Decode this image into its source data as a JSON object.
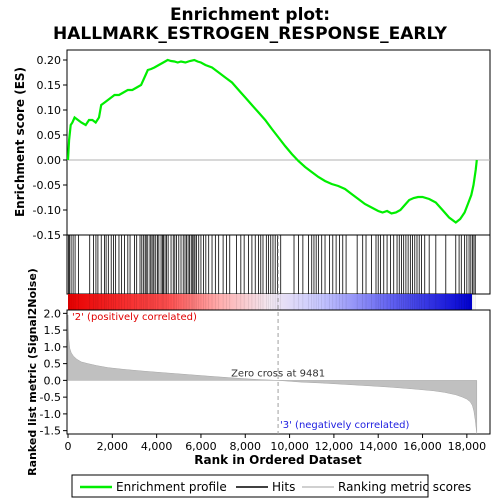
{
  "chart_data": {
    "type": "line",
    "title_line1": "Enrichment plot:",
    "title_line2": "HALLMARK_ESTROGEN_RESPONSE_EARLY",
    "es_panel": {
      "ylabel": "Enrichment score (ES)",
      "ylim": [
        -0.15,
        0.22
      ],
      "yticks": [
        "0.20",
        "0.15",
        "0.10",
        "0.05",
        "0.00",
        "-0.05",
        "-0.10",
        "-0.15"
      ],
      "ytick_values": [
        0.2,
        0.15,
        0.1,
        0.05,
        0.0,
        -0.05,
        -0.1,
        -0.15
      ],
      "series": [
        {
          "name": "Enrichment profile",
          "color": "#00ee00",
          "x": [
            0,
            50,
            120,
            200,
            300,
            450,
            600,
            800,
            950,
            1100,
            1250,
            1400,
            1500,
            1650,
            1800,
            1950,
            2100,
            2300,
            2500,
            2700,
            2900,
            3100,
            3300,
            3500,
            3600,
            3750,
            3900,
            4100,
            4300,
            4500,
            4650,
            4800,
            4950,
            5100,
            5300,
            5500,
            5700,
            5850,
            6000,
            6200,
            6500,
            6800,
            7100,
            7400,
            7600,
            7800,
            8000,
            8300,
            8600,
            8900,
            9200,
            9500,
            9800,
            10100,
            10400,
            10700,
            11000,
            11300,
            11600,
            11900,
            12200,
            12500,
            12800,
            13100,
            13400,
            13700,
            14000,
            14200,
            14400,
            14600,
            14800,
            15000,
            15200,
            15400,
            15600,
            15800,
            16000,
            16300,
            16600,
            16900,
            17200,
            17500,
            17700,
            17900,
            18050,
            18200,
            18300,
            18400,
            18450
          ],
          "y": [
            0.0,
            0.04,
            0.07,
            0.075,
            0.085,
            0.08,
            0.075,
            0.07,
            0.08,
            0.08,
            0.075,
            0.085,
            0.11,
            0.115,
            0.12,
            0.125,
            0.13,
            0.13,
            0.135,
            0.14,
            0.14,
            0.145,
            0.15,
            0.17,
            0.18,
            0.182,
            0.185,
            0.19,
            0.195,
            0.2,
            0.198,
            0.197,
            0.195,
            0.197,
            0.195,
            0.198,
            0.2,
            0.197,
            0.195,
            0.19,
            0.185,
            0.175,
            0.165,
            0.155,
            0.145,
            0.135,
            0.125,
            0.11,
            0.095,
            0.08,
            0.062,
            0.045,
            0.028,
            0.012,
            -0.002,
            -0.014,
            -0.024,
            -0.034,
            -0.042,
            -0.048,
            -0.052,
            -0.058,
            -0.068,
            -0.078,
            -0.088,
            -0.095,
            -0.102,
            -0.105,
            -0.102,
            -0.107,
            -0.105,
            -0.1,
            -0.09,
            -0.08,
            -0.076,
            -0.074,
            -0.074,
            -0.078,
            -0.085,
            -0.1,
            -0.115,
            -0.125,
            -0.118,
            -0.105,
            -0.088,
            -0.07,
            -0.05,
            -0.02,
            0.0
          ]
        }
      ]
    },
    "hits": {
      "name": "Hits",
      "positions": [
        25,
        70,
        140,
        230,
        320,
        470,
        980,
        1150,
        1260,
        1350,
        1500,
        1650,
        1720,
        1820,
        1950,
        2050,
        2150,
        2300,
        2420,
        2550,
        2700,
        2800,
        3000,
        3100,
        3250,
        3330,
        3400,
        3480,
        3530,
        3600,
        3700,
        3750,
        3830,
        3880,
        3960,
        4040,
        4100,
        4200,
        4260,
        4310,
        4380,
        4450,
        4520,
        4650,
        4750,
        4820,
        4900,
        5000,
        5100,
        5200,
        5280,
        5350,
        5420,
        5480,
        5560,
        5610,
        5680,
        5730,
        5800,
        5900,
        6000,
        6120,
        6220,
        6350,
        6500,
        6650,
        6800,
        7000,
        7150,
        7300,
        7600,
        7800,
        7950,
        8150,
        8300,
        8450,
        8600,
        8700,
        8800,
        8950,
        9050,
        9150,
        9250,
        9350,
        9450,
        9600,
        10200,
        10400,
        10600,
        10850,
        11000,
        11100,
        11200,
        11300,
        11450,
        11600,
        11800,
        11950,
        12100,
        12250,
        12400,
        12550,
        13050,
        13300,
        13450,
        13700,
        13900,
        14000,
        14100,
        14250,
        14400,
        14550,
        14700,
        14850,
        14950,
        15050,
        15150,
        15250,
        15350,
        15450,
        15550,
        15650,
        15750,
        15850,
        15950,
        16100,
        16300,
        16600,
        17050,
        17500,
        17650,
        17750,
        17900,
        18000,
        18100,
        18180,
        18250,
        18320,
        18380
      ]
    },
    "rank_panel": {
      "ylabel": "Ranked list metric (Signal2Noise)",
      "ylim": [
        -1.6,
        2.1
      ],
      "yticks": [
        "2.0",
        "1.5",
        "1.0",
        "0.5",
        "0.0",
        "-0.5",
        "-1.0",
        "-1.5"
      ],
      "ytick_values": [
        2.0,
        1.5,
        1.0,
        0.5,
        0.0,
        -0.5,
        -1.0,
        -1.5
      ],
      "series_name": "Ranking metric scores",
      "color": "#c0c0c0",
      "x": [
        0,
        30,
        80,
        150,
        250,
        400,
        600,
        900,
        1300,
        1800,
        2500,
        3500,
        4500,
        5500,
        6500,
        7500,
        8500,
        9481,
        10500,
        11500,
        12500,
        13500,
        14500,
        15500,
        16500,
        17000,
        17500,
        17800,
        18000,
        18150,
        18250,
        18320,
        18380,
        18450
      ],
      "y": [
        1.95,
        1.25,
        0.95,
        0.82,
        0.72,
        0.63,
        0.55,
        0.5,
        0.44,
        0.38,
        0.33,
        0.27,
        0.22,
        0.17,
        0.12,
        0.07,
        0.03,
        0.0,
        -0.05,
        -0.08,
        -0.12,
        -0.16,
        -0.2,
        -0.25,
        -0.31,
        -0.36,
        -0.43,
        -0.5,
        -0.56,
        -0.64,
        -0.75,
        -0.92,
        -1.2,
        -1.6
      ]
    },
    "zero_cross": {
      "label": "Zero cross at 9481",
      "value": 9481
    },
    "pos_label": "'2' (positively correlated)",
    "neg_label": "'3' (negatively correlated)",
    "xlabel": "Rank in Ordered Dataset",
    "xlim": [
      0,
      19000
    ],
    "xticks": [
      "0",
      "2,000",
      "4,000",
      "6,000",
      "8,000",
      "10,000",
      "12,000",
      "14,000",
      "16,000",
      "18,000"
    ],
    "xtick_values": [
      0,
      2000,
      4000,
      6000,
      8000,
      10000,
      12000,
      14000,
      16000,
      18000
    ],
    "legend": {
      "placement": "bottom",
      "items": [
        "Enrichment profile",
        "Hits",
        "Ranking metric scores"
      ]
    }
  }
}
